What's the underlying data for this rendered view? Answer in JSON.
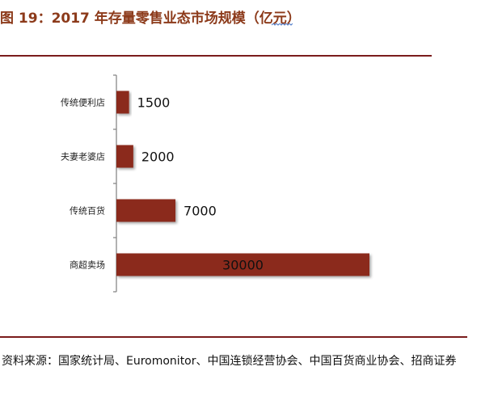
{
  "figure": {
    "title": "图 19：2017 年存量零售业态市场规模（亿元）",
    "source": "资料来源：国家统计局、Euromonitor、中国连锁经营协会、中国百货商业协会、招商证券"
  },
  "colors": {
    "title": "#8c3a1a",
    "bar": "#8b2a1d",
    "rule": "#7a1c1c",
    "axis": "#888888"
  },
  "chart_data": {
    "type": "bar",
    "orientation": "horizontal",
    "categories": [
      "传统便利店",
      "夫妻老婆店",
      "传统百货",
      "商超卖场"
    ],
    "values": [
      1500,
      2000,
      7000,
      30000
    ],
    "data_labels": [
      "1500",
      "2000",
      "7000",
      "30000"
    ],
    "xlim": [
      0,
      30000
    ],
    "grid": false,
    "legend": "none"
  }
}
